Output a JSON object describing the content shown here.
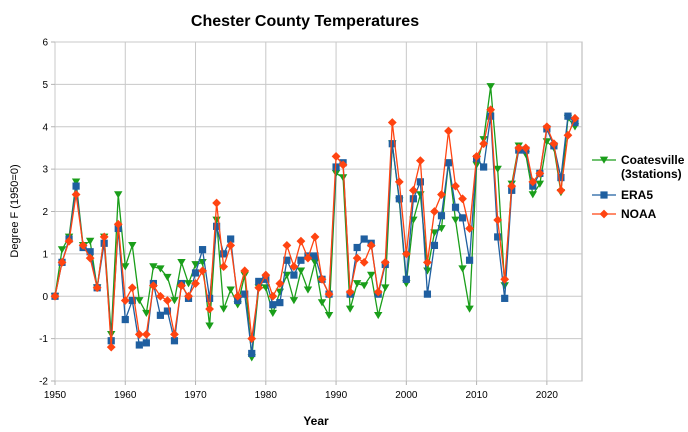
{
  "chart_data": {
    "type": "line",
    "title": "Chester County Temperatures",
    "xlabel": "Year",
    "ylabel": "Degree F (1950=0)",
    "xlim": [
      1950,
      2025
    ],
    "ylim": [
      -2,
      6
    ],
    "xticks": [
      1950,
      1960,
      1970,
      1980,
      1990,
      2000,
      2010,
      2020
    ],
    "yticks": [
      -2,
      -1,
      0,
      1,
      2,
      3,
      4,
      5,
      6
    ],
    "grid": true,
    "legend_position": "right",
    "series": [
      {
        "name": "Coatesville (3stations)",
        "color": "#1a9e1a",
        "marker": "triangle-down",
        "x": [
          1950,
          1951,
          1952,
          1953,
          1954,
          1955,
          1956,
          1957,
          1958,
          1959,
          1960,
          1961,
          1962,
          1963,
          1964,
          1965,
          1966,
          1967,
          1968,
          1969,
          1970,
          1971,
          1972,
          1973,
          1974,
          1975,
          1976,
          1977,
          1978,
          1979,
          1980,
          1981,
          1982,
          1983,
          1984,
          1985,
          1986,
          1987,
          1988,
          1989,
          1990,
          1991,
          1992,
          1993,
          1994,
          1995,
          1996,
          1997,
          1998,
          1999,
          2000,
          2001,
          2002,
          2003,
          2004,
          2005,
          2006,
          2007,
          2008,
          2009,
          2010,
          2011,
          2012,
          2013,
          2014,
          2015,
          2016,
          2017,
          2018,
          2019,
          2020,
          2021,
          2022,
          2023,
          2024
        ],
        "y": [
          0,
          1.1,
          1.4,
          2.7,
          1.2,
          1.3,
          0.2,
          1.4,
          -0.9,
          2.4,
          0.7,
          1.2,
          -0.1,
          -0.4,
          0.7,
          0.65,
          0.45,
          -0.1,
          0.8,
          0.3,
          0.75,
          0.8,
          -0.7,
          1.8,
          -0.3,
          0.15,
          -0.2,
          0.5,
          -1.45,
          0.2,
          0.2,
          -0.4,
          0.1,
          0.5,
          -0.1,
          0.6,
          0.15,
          0.8,
          -0.15,
          -0.45,
          2.9,
          2.8,
          -0.3,
          0.3,
          0.25,
          0.5,
          -0.45,
          0.2,
          3.6,
          2.25,
          0.3,
          1.8,
          2.4,
          0.6,
          1.5,
          1.6,
          3.15,
          1.8,
          0.65,
          -0.3,
          3.1,
          3.7,
          4.95,
          3.0,
          0.25,
          2.65,
          3.55,
          3.35,
          2.4,
          2.65,
          3.65,
          3.5,
          2.45,
          4.2,
          4.0
        ]
      },
      {
        "name": "ERA5",
        "color": "#1f5fa0",
        "marker": "square",
        "x": [
          1950,
          1951,
          1952,
          1953,
          1954,
          1955,
          1956,
          1957,
          1958,
          1959,
          1960,
          1961,
          1962,
          1963,
          1964,
          1965,
          1966,
          1967,
          1968,
          1969,
          1970,
          1971,
          1972,
          1973,
          1974,
          1975,
          1976,
          1977,
          1978,
          1979,
          1980,
          1981,
          1982,
          1983,
          1984,
          1985,
          1986,
          1987,
          1988,
          1989,
          1990,
          1991,
          1992,
          1993,
          1994,
          1995,
          1996,
          1997,
          1998,
          1999,
          2000,
          2001,
          2002,
          2003,
          2004,
          2005,
          2006,
          2007,
          2008,
          2009,
          2010,
          2011,
          2012,
          2013,
          2014,
          2015,
          2016,
          2017,
          2018,
          2019,
          2020,
          2021,
          2022,
          2023,
          2024
        ],
        "y": [
          0,
          0.8,
          1.35,
          2.6,
          1.15,
          1.05,
          0.2,
          1.25,
          -1.05,
          1.6,
          -0.55,
          -0.1,
          -1.15,
          -1.1,
          0.3,
          -0.45,
          -0.35,
          -1.05,
          0.3,
          -0.05,
          0.55,
          1.1,
          -0.05,
          1.65,
          1.0,
          1.35,
          -0.1,
          0.05,
          -1.35,
          0.35,
          0.4,
          -0.2,
          -0.15,
          0.85,
          0.5,
          0.85,
          0.95,
          0.95,
          0.4,
          0.05,
          3.05,
          3.15,
          0.05,
          1.15,
          1.35,
          1.25,
          0.05,
          0.75,
          3.6,
          2.3,
          0.4,
          2.3,
          2.7,
          0.05,
          1.2,
          1.9,
          3.15,
          2.1,
          1.85,
          0.85,
          3.25,
          3.05,
          4.25,
          1.4,
          -0.05,
          2.5,
          3.45,
          3.45,
          2.6,
          2.9,
          3.95,
          3.55,
          2.8,
          4.25,
          4.1
        ]
      },
      {
        "name": "NOAA",
        "color": "#ff4411",
        "marker": "diamond",
        "x": [
          1950,
          1951,
          1952,
          1953,
          1954,
          1955,
          1956,
          1957,
          1958,
          1959,
          1960,
          1961,
          1962,
          1963,
          1964,
          1965,
          1966,
          1967,
          1968,
          1969,
          1970,
          1971,
          1972,
          1973,
          1974,
          1975,
          1976,
          1977,
          1978,
          1979,
          1980,
          1981,
          1982,
          1983,
          1984,
          1985,
          1986,
          1987,
          1988,
          1989,
          1990,
          1991,
          1992,
          1993,
          1994,
          1995,
          1996,
          1997,
          1998,
          1999,
          2000,
          2001,
          2002,
          2003,
          2004,
          2005,
          2006,
          2007,
          2008,
          2009,
          2010,
          2011,
          2012,
          2013,
          2014,
          2015,
          2016,
          2017,
          2018,
          2019,
          2020,
          2021,
          2022,
          2023,
          2024
        ],
        "y": [
          0,
          0.8,
          1.3,
          2.4,
          1.2,
          0.9,
          0.2,
          1.4,
          -1.2,
          1.7,
          -0.1,
          0.2,
          -0.9,
          -0.9,
          0.25,
          0.0,
          -0.1,
          -0.9,
          0.25,
          0.0,
          0.3,
          0.6,
          -0.3,
          2.2,
          0.7,
          1.2,
          0.0,
          0.6,
          -1.0,
          0.2,
          0.5,
          0.0,
          0.3,
          1.2,
          0.7,
          1.3,
          0.9,
          1.4,
          0.4,
          0.05,
          3.3,
          3.1,
          0.1,
          0.9,
          0.8,
          1.2,
          0.1,
          0.8,
          4.1,
          2.7,
          1.0,
          2.5,
          3.2,
          0.8,
          2.0,
          2.4,
          3.9,
          2.6,
          2.3,
          1.6,
          3.3,
          3.6,
          4.4,
          1.8,
          0.4,
          2.6,
          3.5,
          3.5,
          2.7,
          2.9,
          4.0,
          3.6,
          2.5,
          3.8,
          4.2
        ]
      }
    ]
  }
}
